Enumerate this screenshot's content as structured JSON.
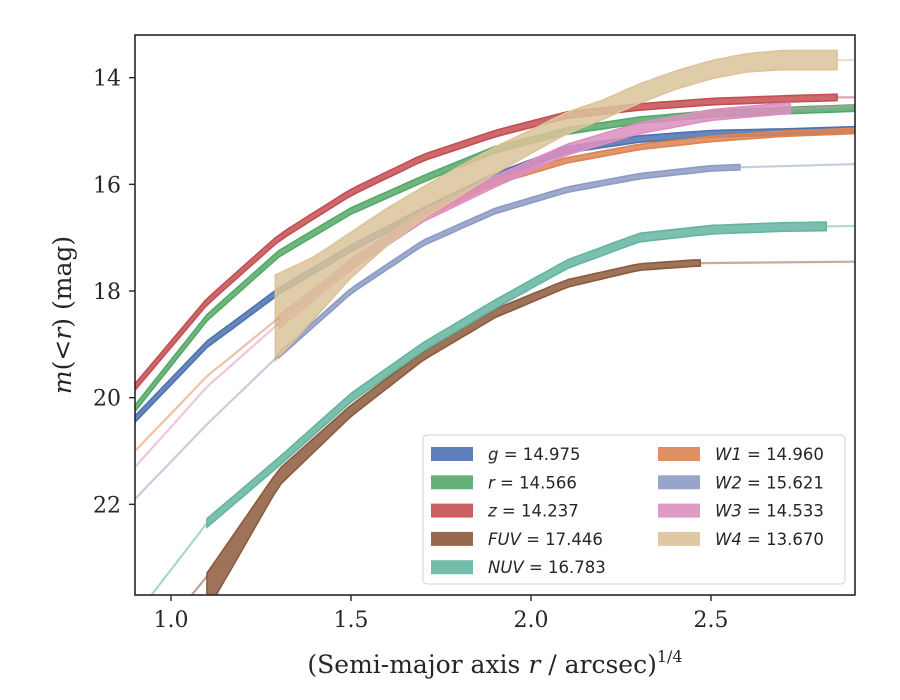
{
  "chart_data": {
    "type": "line",
    "xlabel": "(Semi-major axis r / arcsec)^1/4",
    "xlabel_parts": {
      "pre": "(Semi-major axis ",
      "var": "r",
      "post": " / arcsec)",
      "sup": "1/4"
    },
    "ylabel": "m(<r) (mag)",
    "ylabel_parts": {
      "var": "m",
      "mid": "(<",
      "var2": "r",
      "post": ") (mag)"
    },
    "xlim": [
      0.9,
      2.9
    ],
    "ylim": [
      23.7,
      13.2
    ],
    "y_inverted": true,
    "grid": false,
    "legend_position": "lower-right",
    "x_ticks": [
      1.0,
      1.5,
      2.0,
      2.5
    ],
    "x_tick_labels": [
      "1.0",
      "1.5",
      "2.0",
      "2.5"
    ],
    "y_ticks": [
      14,
      16,
      18,
      20,
      22
    ],
    "y_tick_labels": [
      "14",
      "16",
      "18",
      "20",
      "22"
    ],
    "series": [
      {
        "name": "g = 14.975",
        "label_var": "g",
        "label_val": "= 14.975",
        "color": "#4c72b0",
        "x": [
          0.9,
          1.1,
          1.3,
          1.5,
          1.7,
          1.9,
          2.1,
          2.3,
          2.5,
          2.7,
          2.9
        ],
        "y": [
          20.4,
          19.0,
          18.0,
          17.2,
          16.5,
          15.85,
          15.35,
          15.15,
          15.05,
          15.02,
          14.98
        ],
        "band": 0.06,
        "solid_until": 2.9,
        "faded_from": 2.9
      },
      {
        "name": "r = 14.566",
        "label_var": "r",
        "label_val": "= 14.566",
        "color": "#55a868",
        "x": [
          0.9,
          1.1,
          1.3,
          1.5,
          1.7,
          1.9,
          2.1,
          2.3,
          2.5,
          2.7,
          2.9
        ],
        "y": [
          20.2,
          18.5,
          17.3,
          16.5,
          15.9,
          15.35,
          15.0,
          14.8,
          14.68,
          14.62,
          14.57
        ],
        "band": 0.06,
        "solid_until": 2.9,
        "faded_from": 2.9
      },
      {
        "name": "z = 14.237",
        "label_var": "z",
        "label_val": "= 14.237",
        "color": "#c44e52",
        "x": [
          0.9,
          1.1,
          1.3,
          1.5,
          1.7,
          1.9,
          2.1,
          2.3,
          2.5,
          2.7,
          2.85
        ],
        "y": [
          19.8,
          18.2,
          17.0,
          16.15,
          15.5,
          15.05,
          14.7,
          14.55,
          14.45,
          14.4,
          14.37
        ],
        "band": 0.06,
        "solid_until": 2.85,
        "faded_from": 2.85
      },
      {
        "name": "FUV = 17.446",
        "label_var": "FUV",
        "label_val": "= 17.446",
        "color": "#8c5a3c",
        "x": [
          1.1,
          1.3,
          1.5,
          1.7,
          1.9,
          2.1,
          2.3,
          2.45,
          2.6,
          2.75,
          2.9
        ],
        "y": [
          23.35,
          21.4,
          20.2,
          19.2,
          18.4,
          17.85,
          17.55,
          17.48,
          17.46,
          17.45,
          17.45
        ],
        "band_lower": [
          0.65,
          0.25,
          0.15,
          0.1,
          0.1,
          0.08,
          0.06,
          0.06,
          0.03,
          0.03,
          0.03
        ],
        "band": 0.06,
        "solid_until": 2.47,
        "faded_from": 0.9,
        "faded_start": 0.9,
        "faded_start_y": 25.0
      },
      {
        "name": "NUV = 16.783",
        "label_var": "NUV",
        "label_val": "= 16.783",
        "color": "#64b5a0",
        "x": [
          1.1,
          1.3,
          1.5,
          1.7,
          1.9,
          2.1,
          2.3,
          2.5,
          2.7,
          2.9
        ],
        "y": [
          22.35,
          21.2,
          20.0,
          19.05,
          18.25,
          17.5,
          17.0,
          16.85,
          16.8,
          16.78
        ],
        "band": 0.08,
        "solid_until": 2.82,
        "faded_from": 0.9,
        "faded_start": 0.9,
        "faded_start_y": 24.1
      },
      {
        "name": "W1 = 14.960",
        "label_var": "W1",
        "label_val": "= 14.960",
        "color": "#dd8452",
        "x": [
          0.9,
          1.1,
          1.3,
          1.5,
          1.7,
          1.9,
          2.1,
          2.3,
          2.5,
          2.7,
          2.9
        ],
        "y": [
          21.0,
          19.6,
          18.5,
          17.5,
          16.6,
          15.95,
          15.55,
          15.3,
          15.15,
          15.05,
          15.0
        ],
        "band": 0.05,
        "solid_until": 2.9,
        "faded_from": 0.9,
        "faded_until": 1.3
      },
      {
        "name": "W2 = 15.621",
        "label_var": "W2",
        "label_val": "= 15.621",
        "color": "#8c9bc4",
        "x": [
          0.9,
          1.1,
          1.3,
          1.5,
          1.7,
          1.9,
          2.1,
          2.3,
          2.5,
          2.7,
          2.9
        ],
        "y": [
          21.9,
          20.5,
          19.2,
          18.0,
          17.1,
          16.5,
          16.1,
          15.85,
          15.7,
          15.65,
          15.62
        ],
        "band": 0.05,
        "solid_until": 2.58,
        "faded_from": 0.9,
        "faded_until": 1.3
      },
      {
        "name": "W3 = 14.533",
        "label_var": "W3",
        "label_val": "= 14.533",
        "color": "#dd8fc0",
        "x": [
          0.9,
          1.1,
          1.3,
          1.5,
          1.7,
          1.9,
          2.1,
          2.3,
          2.5,
          2.7,
          2.9
        ],
        "y": [
          21.3,
          19.8,
          18.6,
          17.5,
          16.6,
          15.95,
          15.35,
          14.95,
          14.7,
          14.58,
          14.53
        ],
        "band": 0.1,
        "solid_until": 2.72,
        "faded_from": 0.9,
        "faded_until": 1.3
      },
      {
        "name": "W4 = 13.670",
        "label_var": "W4",
        "label_val": "= 13.670",
        "color": "#dcc39a",
        "x": [
          1.29,
          1.4,
          1.5,
          1.6,
          1.7,
          1.8,
          1.9,
          2.0,
          2.1,
          2.2,
          2.3,
          2.4,
          2.5,
          2.6,
          2.7,
          2.8,
          2.85
        ],
        "y": [
          18.5,
          17.9,
          17.3,
          16.8,
          16.35,
          15.95,
          15.55,
          15.2,
          14.85,
          14.6,
          14.3,
          14.05,
          13.85,
          13.72,
          13.67,
          13.67,
          13.67
        ],
        "band_lower": [
          0.8,
          0.6,
          0.45,
          0.35,
          0.3,
          0.28,
          0.25,
          0.22,
          0.2,
          0.18,
          0.18,
          0.17,
          0.17,
          0.17,
          0.18,
          0.18,
          0.18
        ],
        "band_upper": [
          0.8,
          0.55,
          0.4,
          0.35,
          0.3,
          0.28,
          0.25,
          0.22,
          0.2,
          0.18,
          0.18,
          0.17,
          0.17,
          0.17,
          0.18,
          0.18,
          0.18
        ],
        "band": 0.2,
        "solid_until": 2.85,
        "faded_from": 2.85,
        "faded_end_x": 2.9
      }
    ],
    "legend_order": [
      0,
      5,
      1,
      6,
      2,
      7,
      3,
      8,
      4
    ]
  }
}
